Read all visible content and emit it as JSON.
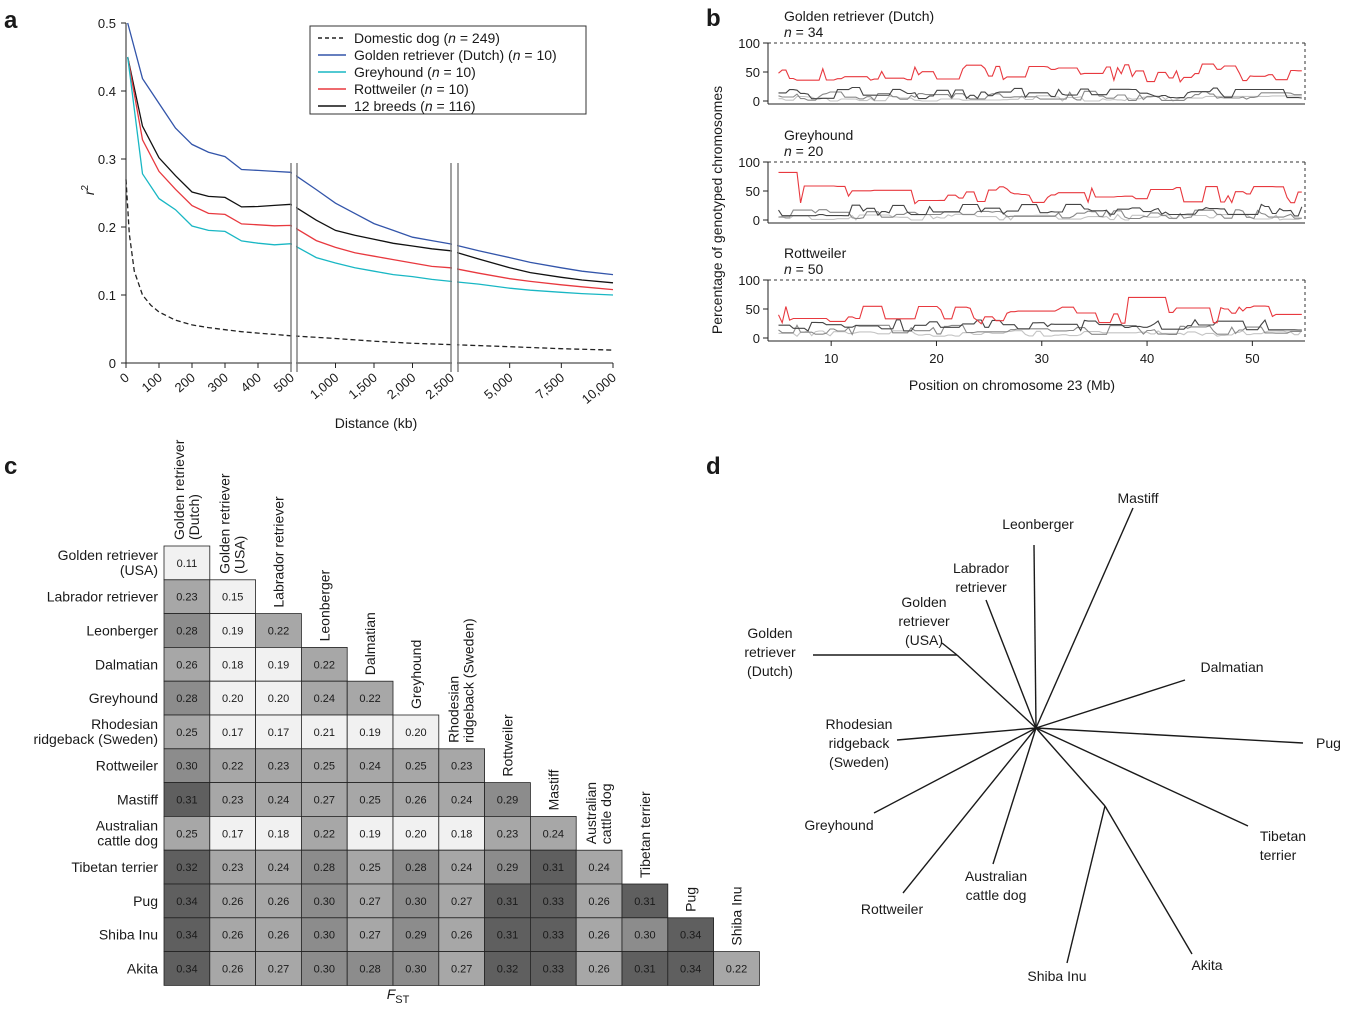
{
  "panels": {
    "a": "a",
    "b": "b",
    "c": "c",
    "d": "d"
  },
  "chart_data": [
    {
      "panel": "a",
      "type": "line",
      "xlabel": "Distance (kb)",
      "ylabel": "r",
      "ylabel_sup": "2",
      "ylim": [
        0,
        0.5
      ],
      "yticks": [
        "0",
        "0.1",
        "0.2",
        "0.3",
        "0.4",
        "0.5"
      ],
      "xaxis_segments": [
        {
          "range": [
            0,
            500
          ],
          "ticks": [
            "0",
            "100",
            "200",
            "300",
            "400",
            "500"
          ]
        },
        {
          "range": [
            500,
            2500
          ],
          "ticks": [
            "1,000",
            "1,500",
            "2,000",
            "2,500"
          ]
        },
        {
          "range": [
            2500,
            10000
          ],
          "ticks": [
            "5,000",
            "7,500",
            "10,000"
          ]
        }
      ],
      "legend": {
        "position": "top-right",
        "entries": [
          {
            "name": "Domestic dog",
            "n": "n = 249",
            "color": "#222222",
            "style": "dashed"
          },
          {
            "name": "Golden retriever (Dutch)",
            "n": "n = 10",
            "color": "#3355aa",
            "style": "solid"
          },
          {
            "name": "Greyhound",
            "n": "n = 10",
            "color": "#19b7c4",
            "style": "solid"
          },
          {
            "name": "Rottweiler",
            "n": "n = 10",
            "color": "#e8393f",
            "style": "solid"
          },
          {
            "name": "12 breeds",
            "n": "n = 116",
            "color": "#111111",
            "style": "solid"
          }
        ]
      },
      "series": [
        {
          "name": "Golden retriever (Dutch)",
          "points": [
            [
              5,
              0.5
            ],
            [
              50,
              0.42
            ],
            [
              100,
              0.38
            ],
            [
              150,
              0.34
            ],
            [
              200,
              0.325
            ],
            [
              250,
              0.31
            ],
            [
              300,
              0.3
            ],
            [
              350,
              0.29
            ],
            [
              400,
              0.285
            ],
            [
              450,
              0.28
            ],
            [
              500,
              0.275
            ],
            [
              750,
              0.255
            ],
            [
              1000,
              0.235
            ],
            [
              1250,
              0.22
            ],
            [
              1500,
              0.205
            ],
            [
              1750,
              0.195
            ],
            [
              2000,
              0.185
            ],
            [
              2250,
              0.18
            ],
            [
              2500,
              0.175
            ],
            [
              3500,
              0.165
            ],
            [
              5000,
              0.155
            ],
            [
              6000,
              0.148
            ],
            [
              7500,
              0.14
            ],
            [
              8500,
              0.135
            ],
            [
              10000,
              0.13
            ]
          ]
        },
        {
          "name": "12 breeds",
          "points": [
            [
              5,
              0.45
            ],
            [
              50,
              0.35
            ],
            [
              100,
              0.3
            ],
            [
              150,
              0.27
            ],
            [
              200,
              0.255
            ],
            [
              250,
              0.245
            ],
            [
              300,
              0.24
            ],
            [
              350,
              0.235
            ],
            [
              400,
              0.232
            ],
            [
              450,
              0.23
            ],
            [
              500,
              0.228
            ],
            [
              750,
              0.21
            ],
            [
              1000,
              0.195
            ],
            [
              1250,
              0.188
            ],
            [
              1500,
              0.182
            ],
            [
              1750,
              0.176
            ],
            [
              2000,
              0.172
            ],
            [
              2250,
              0.168
            ],
            [
              2500,
              0.165
            ],
            [
              3500,
              0.153
            ],
            [
              5000,
              0.14
            ],
            [
              6000,
              0.133
            ],
            [
              7500,
              0.126
            ],
            [
              8500,
              0.122
            ],
            [
              10000,
              0.118
            ]
          ]
        },
        {
          "name": "Rottweiler",
          "points": [
            [
              5,
              0.45
            ],
            [
              50,
              0.33
            ],
            [
              100,
              0.28
            ],
            [
              150,
              0.25
            ],
            [
              200,
              0.235
            ],
            [
              250,
              0.22
            ],
            [
              300,
              0.215
            ],
            [
              350,
              0.21
            ],
            [
              400,
              0.205
            ],
            [
              450,
              0.2
            ],
            [
              500,
              0.197
            ],
            [
              750,
              0.18
            ],
            [
              1000,
              0.17
            ],
            [
              1250,
              0.162
            ],
            [
              1500,
              0.157
            ],
            [
              1750,
              0.152
            ],
            [
              2000,
              0.147
            ],
            [
              2250,
              0.142
            ],
            [
              2500,
              0.14
            ],
            [
              3500,
              0.132
            ],
            [
              5000,
              0.124
            ],
            [
              6000,
              0.12
            ],
            [
              7500,
              0.115
            ],
            [
              8500,
              0.112
            ],
            [
              10000,
              0.108
            ]
          ]
        },
        {
          "name": "Greyhound",
          "points": [
            [
              5,
              0.45
            ],
            [
              50,
              0.28
            ],
            [
              100,
              0.24
            ],
            [
              150,
              0.22
            ],
            [
              200,
              0.205
            ],
            [
              250,
              0.195
            ],
            [
              300,
              0.19
            ],
            [
              350,
              0.185
            ],
            [
              400,
              0.178
            ],
            [
              450,
              0.172
            ],
            [
              500,
              0.17
            ],
            [
              750,
              0.155
            ],
            [
              1000,
              0.147
            ],
            [
              1250,
              0.14
            ],
            [
              1500,
              0.135
            ],
            [
              1750,
              0.13
            ],
            [
              2000,
              0.127
            ],
            [
              2250,
              0.123
            ],
            [
              2500,
              0.12
            ],
            [
              3500,
              0.116
            ],
            [
              5000,
              0.11
            ],
            [
              6000,
              0.107
            ],
            [
              7500,
              0.104
            ],
            [
              8500,
              0.102
            ],
            [
              10000,
              0.1
            ]
          ]
        },
        {
          "name": "Domestic dog",
          "points": [
            [
              0,
              0.27
            ],
            [
              10,
              0.19
            ],
            [
              25,
              0.135
            ],
            [
              50,
              0.1
            ],
            [
              75,
              0.085
            ],
            [
              100,
              0.075
            ],
            [
              150,
              0.063
            ],
            [
              200,
              0.056
            ],
            [
              250,
              0.052
            ],
            [
              300,
              0.049
            ],
            [
              350,
              0.046
            ],
            [
              400,
              0.044
            ],
            [
              450,
              0.042
            ],
            [
              500,
              0.04
            ],
            [
              1000,
              0.036
            ],
            [
              1500,
              0.032
            ],
            [
              2000,
              0.029
            ],
            [
              2500,
              0.027
            ],
            [
              5000,
              0.024
            ],
            [
              7500,
              0.021
            ],
            [
              10000,
              0.019
            ]
          ]
        }
      ]
    },
    {
      "panel": "b",
      "type": "line",
      "ylabel": "Percentage of genotyped chromosomes",
      "xlabel": "Position on chromosome 23 (Mb)",
      "xlim": [
        4,
        55
      ],
      "xticks": [
        "10",
        "20",
        "30",
        "40",
        "50"
      ],
      "ylim": [
        0,
        100
      ],
      "yticks": [
        "0",
        "50",
        "100"
      ],
      "subplots": [
        {
          "title": "Golden retriever (Dutch)",
          "n_label": "n = 34",
          "red_mean": 48,
          "dark_mean": 14,
          "mid_mean": 9,
          "light_mean": 4
        },
        {
          "title": "Greyhound",
          "n_label": "n = 20",
          "red_mean": 44,
          "dark_mean": 17,
          "mid_mean": 10,
          "light_mean": 5
        },
        {
          "title": "Rottweiler",
          "n_label": "n = 50",
          "red_mean": 40,
          "dark_mean": 22,
          "mid_mean": 14,
          "light_mean": 8
        }
      ],
      "series_colors": [
        "#e8393f",
        "#444444",
        "#888888",
        "#c4c4c4"
      ]
    },
    {
      "panel": "c",
      "type": "table",
      "xlabel": "F",
      "xlabel_sub": "ST",
      "columns": [
        "Golden retriever (Dutch)",
        "Golden retriever (USA)",
        "Labrador retriever",
        "Leonberger",
        "Dalmatian",
        "Greyhound",
        "Rhodesian ridgeback (Sweden)",
        "Rottweiler",
        "Mastiff",
        "Australian cattle dog",
        "Tibetan terrier",
        "Pug",
        "Shiba Inu"
      ],
      "rows": [
        {
          "label": "Golden retriever (USA)",
          "values": [
            "0.11"
          ]
        },
        {
          "label": "Labrador retriever",
          "values": [
            "0.23",
            "0.15"
          ]
        },
        {
          "label": "Leonberger",
          "values": [
            "0.28",
            "0.19",
            "0.22"
          ]
        },
        {
          "label": "Dalmatian",
          "values": [
            "0.26",
            "0.18",
            "0.19",
            "0.22"
          ]
        },
        {
          "label": "Greyhound",
          "values": [
            "0.28",
            "0.20",
            "0.20",
            "0.24",
            "0.22"
          ]
        },
        {
          "label": "Rhodesian ridgeback (Sweden)",
          "values": [
            "0.25",
            "0.17",
            "0.17",
            "0.21",
            "0.19",
            "0.20"
          ]
        },
        {
          "label": "Rottweiler",
          "values": [
            "0.30",
            "0.22",
            "0.23",
            "0.25",
            "0.24",
            "0.25",
            "0.23"
          ]
        },
        {
          "label": "Mastiff",
          "values": [
            "0.31",
            "0.23",
            "0.24",
            "0.27",
            "0.25",
            "0.26",
            "0.24",
            "0.29"
          ]
        },
        {
          "label": "Australian cattle dog",
          "values": [
            "0.25",
            "0.17",
            "0.18",
            "0.22",
            "0.19",
            "0.20",
            "0.18",
            "0.23",
            "0.24"
          ]
        },
        {
          "label": "Tibetan terrier",
          "values": [
            "0.32",
            "0.23",
            "0.24",
            "0.28",
            "0.25",
            "0.28",
            "0.24",
            "0.29",
            "0.31",
            "0.24"
          ]
        },
        {
          "label": "Pug",
          "values": [
            "0.34",
            "0.26",
            "0.26",
            "0.30",
            "0.27",
            "0.30",
            "0.27",
            "0.31",
            "0.33",
            "0.26",
            "0.31"
          ]
        },
        {
          "label": "Shiba Inu",
          "values": [
            "0.34",
            "0.26",
            "0.26",
            "0.30",
            "0.27",
            "0.29",
            "0.26",
            "0.31",
            "0.33",
            "0.26",
            "0.30",
            "0.34"
          ]
        },
        {
          "label": "Akita",
          "values": [
            "0.34",
            "0.26",
            "0.27",
            "0.30",
            "0.28",
            "0.30",
            "0.27",
            "0.32",
            "0.33",
            "0.26",
            "0.31",
            "0.34",
            "0.22"
          ]
        }
      ]
    },
    {
      "panel": "d",
      "type": "other",
      "description_kind": "unrooted tree",
      "leaves": [
        "Mastiff",
        "Leonberger",
        "Labrador retriever",
        "Golden retriever (USA)",
        "Golden retriever (Dutch)",
        "Dalmatian",
        "Rhodesian ridgeback (Sweden)",
        "Pug",
        "Greyhound",
        "Tibetan terrier",
        "Australian cattle dog",
        "Rottweiler",
        "Shiba Inu",
        "Akita"
      ]
    }
  ]
}
